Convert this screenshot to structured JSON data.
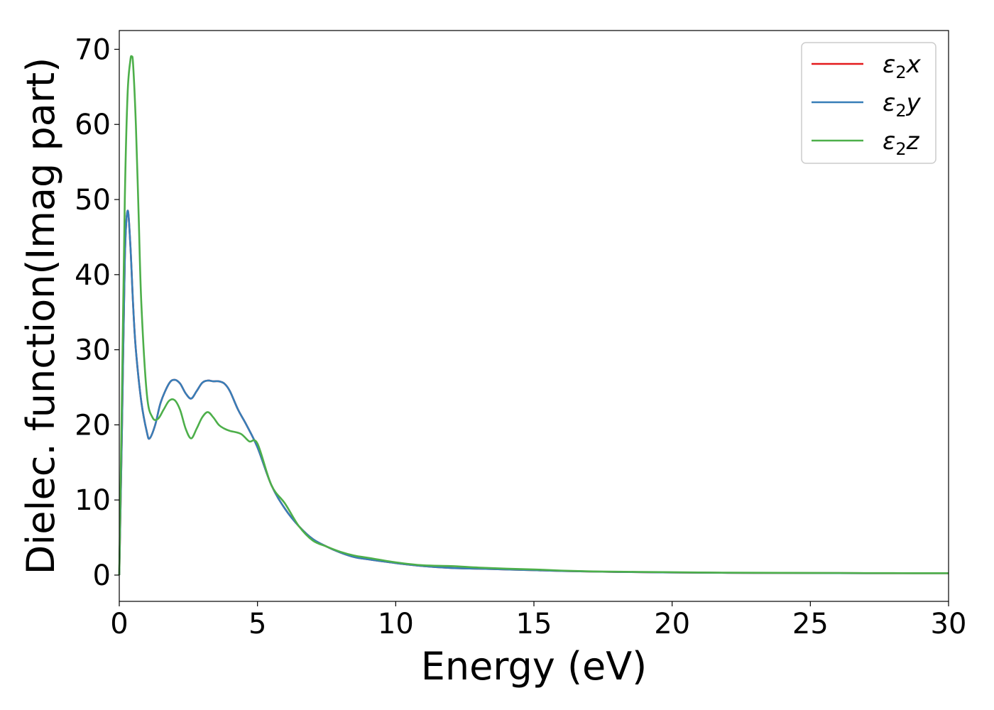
{
  "chart_data": {
    "type": "line",
    "title": "",
    "xlabel": "Energy (eV)",
    "ylabel": "Dielec. function(Imag part)",
    "xlim": [
      0,
      30
    ],
    "ylim": [
      -3.5,
      72.5
    ],
    "xticks": [
      0,
      5,
      10,
      15,
      20,
      25,
      30
    ],
    "yticks": [
      0,
      10,
      20,
      30,
      40,
      50,
      60,
      70
    ],
    "grid": false,
    "legend_position": "top-right",
    "series": [
      {
        "name": "ε₂x",
        "legend_base": "ε",
        "legend_sub": "2",
        "legend_var": "x",
        "color": "#e41a1c",
        "x": [
          0,
          0.1,
          0.2,
          0.3,
          0.4,
          0.5,
          0.6,
          0.8,
          1.0,
          1.1,
          1.3,
          1.5,
          1.8,
          2.0,
          2.2,
          2.4,
          2.6,
          2.8,
          3.0,
          3.2,
          3.4,
          3.6,
          3.8,
          4.0,
          4.3,
          4.6,
          5.0,
          5.5,
          6.0,
          6.5,
          7.0,
          7.5,
          8.0,
          8.5,
          9.0,
          10.0,
          11.0,
          12.0,
          13.0,
          14.0,
          15.0,
          16.0,
          17.0,
          18.0,
          20.0,
          22.0,
          24.0,
          26.0,
          28.0,
          30.0
        ],
        "y": [
          0,
          20,
          42,
          48.5,
          44,
          36,
          30,
          23,
          19,
          18.2,
          20,
          23,
          25.5,
          26,
          25.5,
          24.2,
          23.5,
          24.5,
          25.6,
          25.9,
          25.8,
          25.8,
          25.5,
          24.5,
          22,
          20,
          17,
          12,
          8.8,
          6.5,
          4.8,
          3.8,
          3.0,
          2.4,
          2.1,
          1.6,
          1.2,
          0.95,
          0.85,
          0.75,
          0.65,
          0.55,
          0.48,
          0.42,
          0.35,
          0.3,
          0.28,
          0.26,
          0.25,
          0.25
        ]
      },
      {
        "name": "ε₂y",
        "legend_base": "ε",
        "legend_sub": "2",
        "legend_var": "y",
        "color": "#377eb8",
        "x": [
          0,
          0.1,
          0.2,
          0.3,
          0.4,
          0.5,
          0.6,
          0.8,
          1.0,
          1.1,
          1.3,
          1.5,
          1.8,
          2.0,
          2.2,
          2.4,
          2.6,
          2.8,
          3.0,
          3.2,
          3.4,
          3.6,
          3.8,
          4.0,
          4.3,
          4.6,
          5.0,
          5.5,
          6.0,
          6.5,
          7.0,
          7.5,
          8.0,
          8.5,
          9.0,
          10.0,
          11.0,
          12.0,
          13.0,
          14.0,
          15.0,
          16.0,
          17.0,
          18.0,
          20.0,
          22.0,
          24.0,
          26.0,
          28.0,
          30.0
        ],
        "y": [
          0,
          20,
          42,
          48.5,
          44,
          36,
          30,
          23,
          19,
          18.2,
          20,
          23,
          25.5,
          26,
          25.5,
          24.2,
          23.5,
          24.5,
          25.6,
          25.9,
          25.8,
          25.8,
          25.5,
          24.5,
          22,
          20,
          17,
          12,
          8.8,
          6.5,
          4.8,
          3.8,
          3.0,
          2.4,
          2.1,
          1.6,
          1.2,
          0.95,
          0.85,
          0.75,
          0.65,
          0.55,
          0.48,
          0.42,
          0.35,
          0.3,
          0.28,
          0.26,
          0.25,
          0.25
        ]
      },
      {
        "name": "ε₂z",
        "legend_base": "ε",
        "legend_sub": "2",
        "legend_var": "z",
        "color": "#4daf4a",
        "x": [
          0,
          0.1,
          0.2,
          0.3,
          0.4,
          0.45,
          0.5,
          0.6,
          0.7,
          0.8,
          1.0,
          1.2,
          1.4,
          1.6,
          1.8,
          2.0,
          2.2,
          2.4,
          2.6,
          2.8,
          3.0,
          3.2,
          3.4,
          3.6,
          3.8,
          4.0,
          4.4,
          4.7,
          5.0,
          5.5,
          6.0,
          6.5,
          7.0,
          7.5,
          8.0,
          8.5,
          9.0,
          10.0,
          11.0,
          12.0,
          13.0,
          14.0,
          15.0,
          16.0,
          17.0,
          18.0,
          20.0,
          22.0,
          24.0,
          26.0,
          28.0,
          30.0
        ],
        "y": [
          0,
          25,
          50,
          64,
          68.5,
          69,
          68,
          60,
          48,
          36,
          24,
          21,
          20.8,
          22,
          23.2,
          23.3,
          22,
          19.5,
          18.2,
          19.5,
          21,
          21.7,
          21,
          20,
          19.5,
          19.2,
          18.8,
          17.8,
          17.5,
          12,
          9.5,
          6.5,
          4.6,
          3.8,
          3.1,
          2.6,
          2.3,
          1.7,
          1.3,
          1.2,
          1.0,
          0.85,
          0.75,
          0.6,
          0.5,
          0.45,
          0.38,
          0.32,
          0.3,
          0.28,
          0.26,
          0.25
        ]
      }
    ]
  }
}
